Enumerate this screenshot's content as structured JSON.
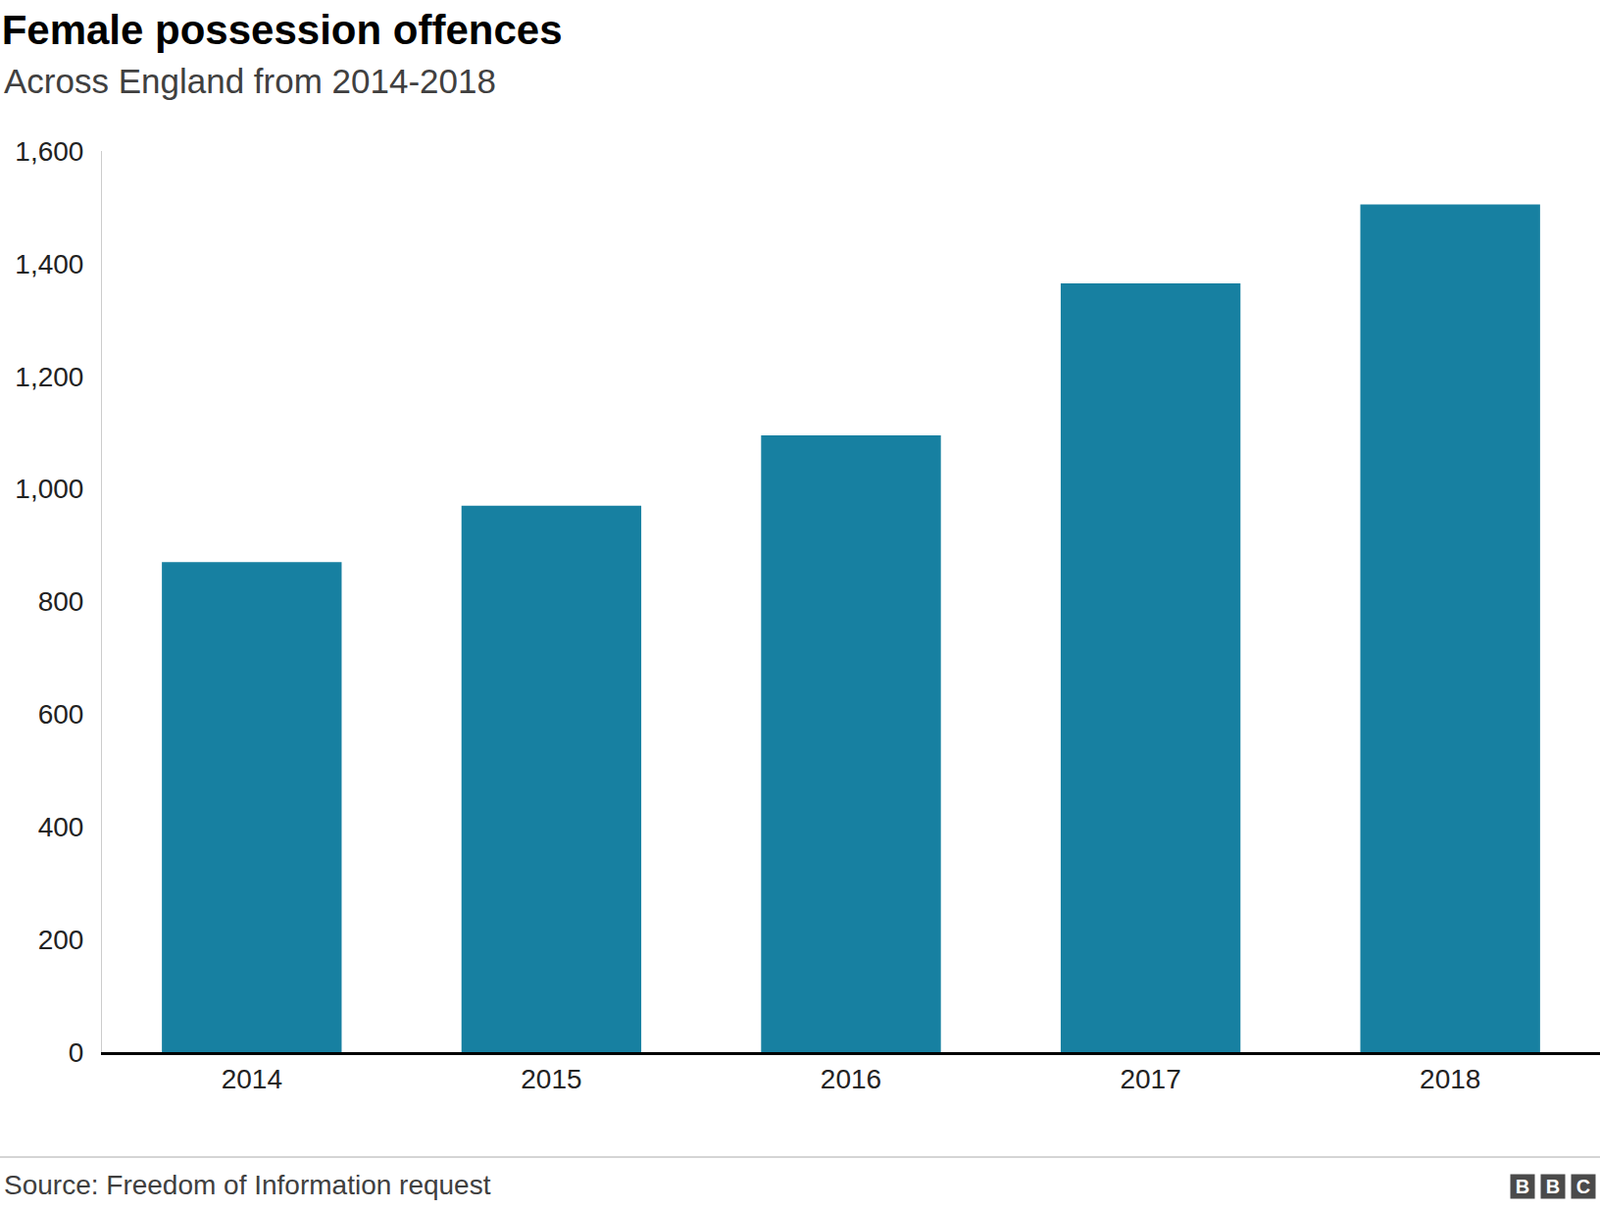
{
  "chart_data": {
    "type": "bar",
    "title": "Female possession offences",
    "subtitle": "Across England from 2014-2018",
    "categories": [
      "2014",
      "2015",
      "2016",
      "2017",
      "2018"
    ],
    "values": [
      870,
      970,
      1095,
      1365,
      1505
    ],
    "color": "#1780a1",
    "ylim": [
      0,
      1600
    ],
    "yticks": [
      0,
      200,
      400,
      600,
      800,
      {
        "value": 1000,
        "label": "1,000"
      },
      {
        "value": 1200,
        "label": "1,200"
      },
      {
        "value": 1400,
        "label": "1,400"
      },
      {
        "value": 1600,
        "label": "1,600"
      }
    ],
    "grid": false,
    "source": "Source: Freedom of Information request",
    "logo": "BBC"
  }
}
